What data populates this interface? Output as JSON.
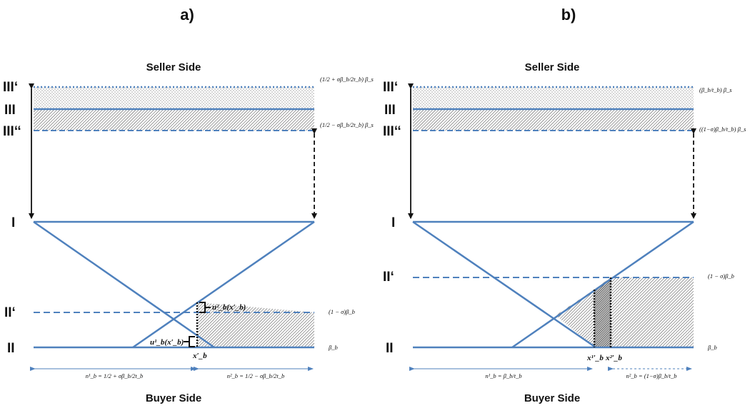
{
  "panels": [
    {
      "title": "a)",
      "seller_label": "Seller Side",
      "buyer_label": "Buyer Side",
      "levels": {
        "III_prime": "III‘",
        "III": "III",
        "III_dprime": "III‘‘",
        "I": "I",
        "II_prime": "II‘",
        "II": "II"
      },
      "right_labels": {
        "top": "(1/2 + σβ_b/2t_b) β_s",
        "bottom": "(1/2 − σβ_b/2t_b) β_s",
        "mid": "(1 − σ)β_b",
        "low": "β_b"
      },
      "marks": {
        "u2": "u²_b(x′_b)",
        "u1": "u¹_b(x′_b)",
        "x": "x′_b"
      },
      "bottom_labels": {
        "left": "n¹_b = 1/2 + σβ_b/2t_b",
        "right": "n²_b = 1/2 − σβ_b/2t_b"
      }
    },
    {
      "title": "b)",
      "seller_label": "Seller Side",
      "buyer_label": "Buyer Side",
      "levels": {
        "III_prime": "III‘",
        "III": "III",
        "III_dprime": "III‘‘",
        "I": "I",
        "II_prime": "II‘",
        "II": "II"
      },
      "right_labels": {
        "top": "(β_b/t_b) β_s",
        "bottom": "((1−σ)β_b/t_b) β_s",
        "mid": "(1 − σ)β_b",
        "low": "β_b"
      },
      "marks": {
        "x1": "x¹′_b",
        "x2": "x²′_b"
      },
      "bottom_labels": {
        "left": "n¹_b = β_b/t_b",
        "right": "n²_b = (1−σ)β_b/t_b"
      }
    }
  ],
  "colors": {
    "line": "#4f81bd",
    "arrow": "#111111",
    "hatch": "#333333"
  }
}
